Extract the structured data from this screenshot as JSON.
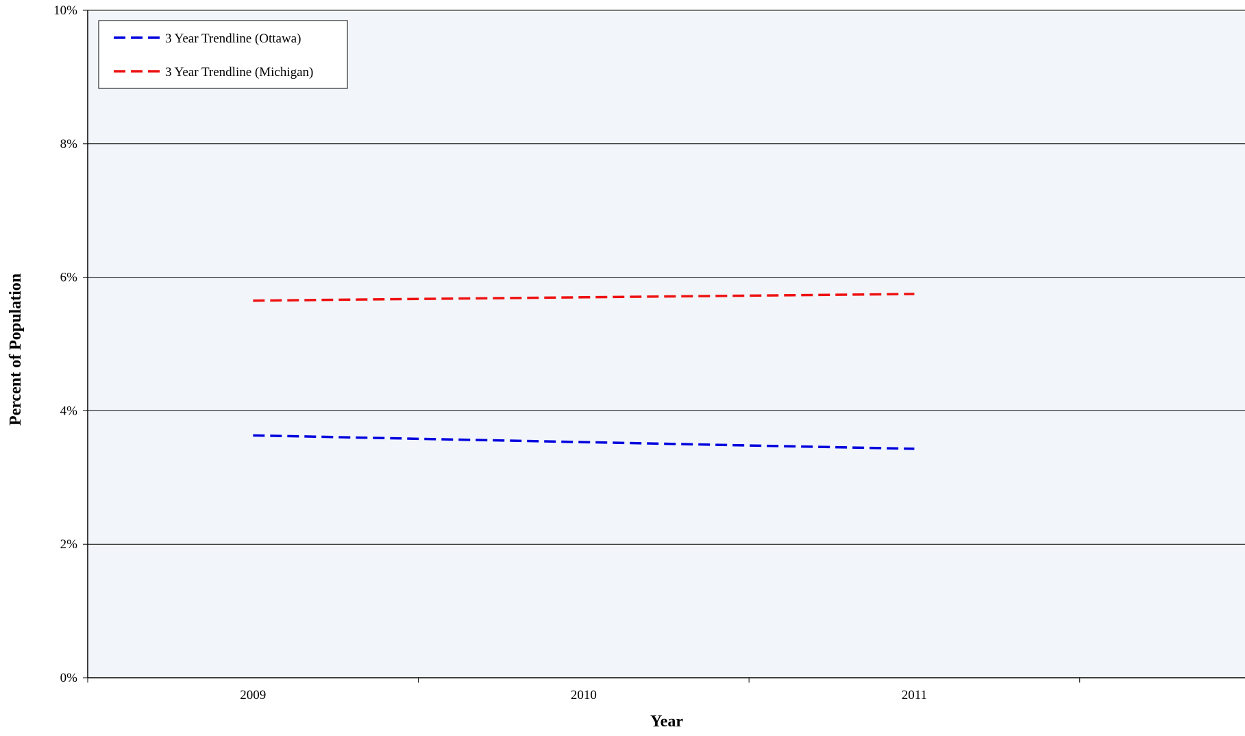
{
  "chart_data": {
    "type": "line",
    "title": "",
    "xlabel": "Year",
    "ylabel": "Percent of Population",
    "categories": [
      "2009",
      "2010",
      "2011"
    ],
    "ylim": [
      0,
      10
    ],
    "y_ticks": [
      "0%",
      "2%",
      "4%",
      "6%",
      "8%",
      "10%"
    ],
    "y_tick_values": [
      0,
      2,
      4,
      6,
      8,
      10
    ],
    "grid": "horizontal",
    "legend_position": "top-left",
    "series": [
      {
        "name": "3 Year Trendline (Ottawa)",
        "values": [
          3.63,
          3.53,
          3.43
        ],
        "color": "#0000dd",
        "line_style": "dashed"
      },
      {
        "name": "3 Year Trendline (Michigan)",
        "values": [
          5.65,
          5.7,
          5.75
        ],
        "color": "#ee1111",
        "line_style": "dashed"
      }
    ],
    "colors": {
      "plot_background": "#f2f6fb",
      "gridline": "#000000"
    }
  }
}
